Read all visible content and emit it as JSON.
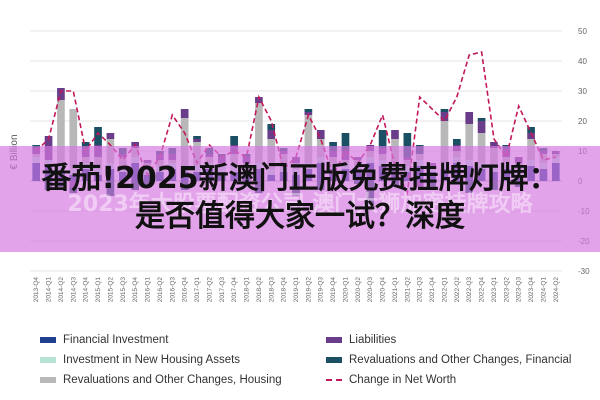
{
  "chart_data": {
    "type": "bar",
    "ylabel": "€ Billion",
    "ylim": [
      -30,
      50
    ],
    "yticks": [
      50,
      40,
      30,
      20,
      10,
      0,
      -10,
      -20,
      -30
    ],
    "categories": [
      "2013-Q4",
      "2014-Q1",
      "2014-Q2",
      "2014-Q3",
      "2014-Q4",
      "2015-Q1",
      "2015-Q2",
      "2015-Q3",
      "2015-Q4",
      "2016-Q1",
      "2016-Q2",
      "2016-Q3",
      "2016-Q4",
      "2017-Q1",
      "2017-Q2",
      "2017-Q3",
      "2017-Q4",
      "2018-Q1",
      "2018-Q2",
      "2018-Q3",
      "2018-Q4",
      "2019-Q1",
      "2019-Q2",
      "2019-Q3",
      "2019-Q4",
      "2020-Q1",
      "2020-Q2",
      "2020-Q3",
      "2020-Q4",
      "2021-Q1",
      "2021-Q2",
      "2021-Q3",
      "2021-Q4",
      "2022-Q1",
      "2022-Q2",
      "2022-Q3",
      "2022-Q4",
      "2023-Q1",
      "2023-Q2",
      "2023-Q3",
      "2023-Q4",
      "2024-Q1",
      "2024-Q2"
    ],
    "series": [
      {
        "name": "Financial Investment",
        "color": "#1f3f8f",
        "values": [
          6,
          5,
          3,
          2,
          4,
          2,
          4,
          3,
          6,
          2,
          3,
          4,
          3,
          3,
          4,
          3,
          3,
          2,
          4,
          2,
          3,
          2,
          4,
          6,
          4,
          4,
          3,
          6,
          5,
          4,
          3,
          5,
          3,
          4,
          6,
          5,
          4,
          3,
          4,
          2,
          5,
          4,
          6
        ]
      },
      {
        "name": "Investment in New Housing Assets",
        "color": "#b5e3d6",
        "values": [
          2,
          2,
          2,
          2,
          2,
          2,
          2,
          2,
          2,
          2,
          2,
          2,
          2,
          2,
          2,
          2,
          2,
          2,
          2,
          2,
          2,
          2,
          2,
          2,
          2,
          2,
          2,
          2,
          2,
          2,
          2,
          2,
          2,
          2,
          2,
          2,
          2,
          2,
          2,
          2,
          2,
          2,
          2
        ]
      },
      {
        "name": "Revaluations and Other Changes, Housing",
        "color": "#b8b8b8",
        "values": [
          1,
          0,
          22,
          20,
          2,
          4,
          8,
          3,
          3,
          2,
          2,
          1,
          16,
          8,
          2,
          1,
          4,
          2,
          20,
          10,
          4,
          2,
          16,
          6,
          2,
          1,
          2,
          2,
          2,
          8,
          2,
          2,
          0,
          14,
          2,
          12,
          10,
          6,
          2,
          2,
          7,
          3,
          1
        ]
      },
      {
        "name": "Liabilities",
        "color": "#6a3d8a",
        "values": [
          2,
          8,
          4,
          -2,
          3,
          4,
          2,
          1,
          2,
          1,
          2,
          2,
          3,
          1,
          1,
          2,
          3,
          2,
          2,
          3,
          1,
          2,
          1,
          3,
          2,
          3,
          1,
          2,
          2,
          3,
          1,
          -2,
          1,
          3,
          2,
          4,
          4,
          2,
          3,
          2,
          2,
          1,
          1
        ]
      },
      {
        "name": "Revaluations and Other Changes, Financial",
        "color": "#1b4f63",
        "values": [
          1,
          -3,
          -2,
          -2,
          2,
          6,
          -5,
          2,
          -3,
          -2,
          1,
          2,
          -3,
          1,
          2,
          1,
          3,
          1,
          -4,
          2,
          1,
          -5,
          1,
          -3,
          3,
          6,
          -1,
          -8,
          6,
          -2,
          8,
          3,
          -3,
          1,
          2,
          -4,
          1,
          -3,
          1,
          -2,
          2,
          1,
          0
        ]
      },
      {
        "name": "Change in Net Worth",
        "color": "#c2185b",
        "type": "line",
        "values": [
          10,
          14,
          30,
          30,
          10,
          16,
          12,
          7,
          12,
          2,
          8,
          22,
          16,
          6,
          12,
          8,
          10,
          8,
          28,
          20,
          4,
          8,
          22,
          14,
          2,
          10,
          6,
          12,
          22,
          5,
          -4,
          28,
          24,
          20,
          28,
          42,
          43,
          14,
          8,
          25,
          16,
          7,
          8
        ]
      }
    ],
    "legend_position": "bottom",
    "grid": true
  },
  "overlay": {
    "title": "番茄!2025新澳门正版免费挂牌灯牌：是否值得大家一试？深度",
    "watermark": "2023年大股票配资公司 澳门大狮加密挂牌攻略"
  }
}
